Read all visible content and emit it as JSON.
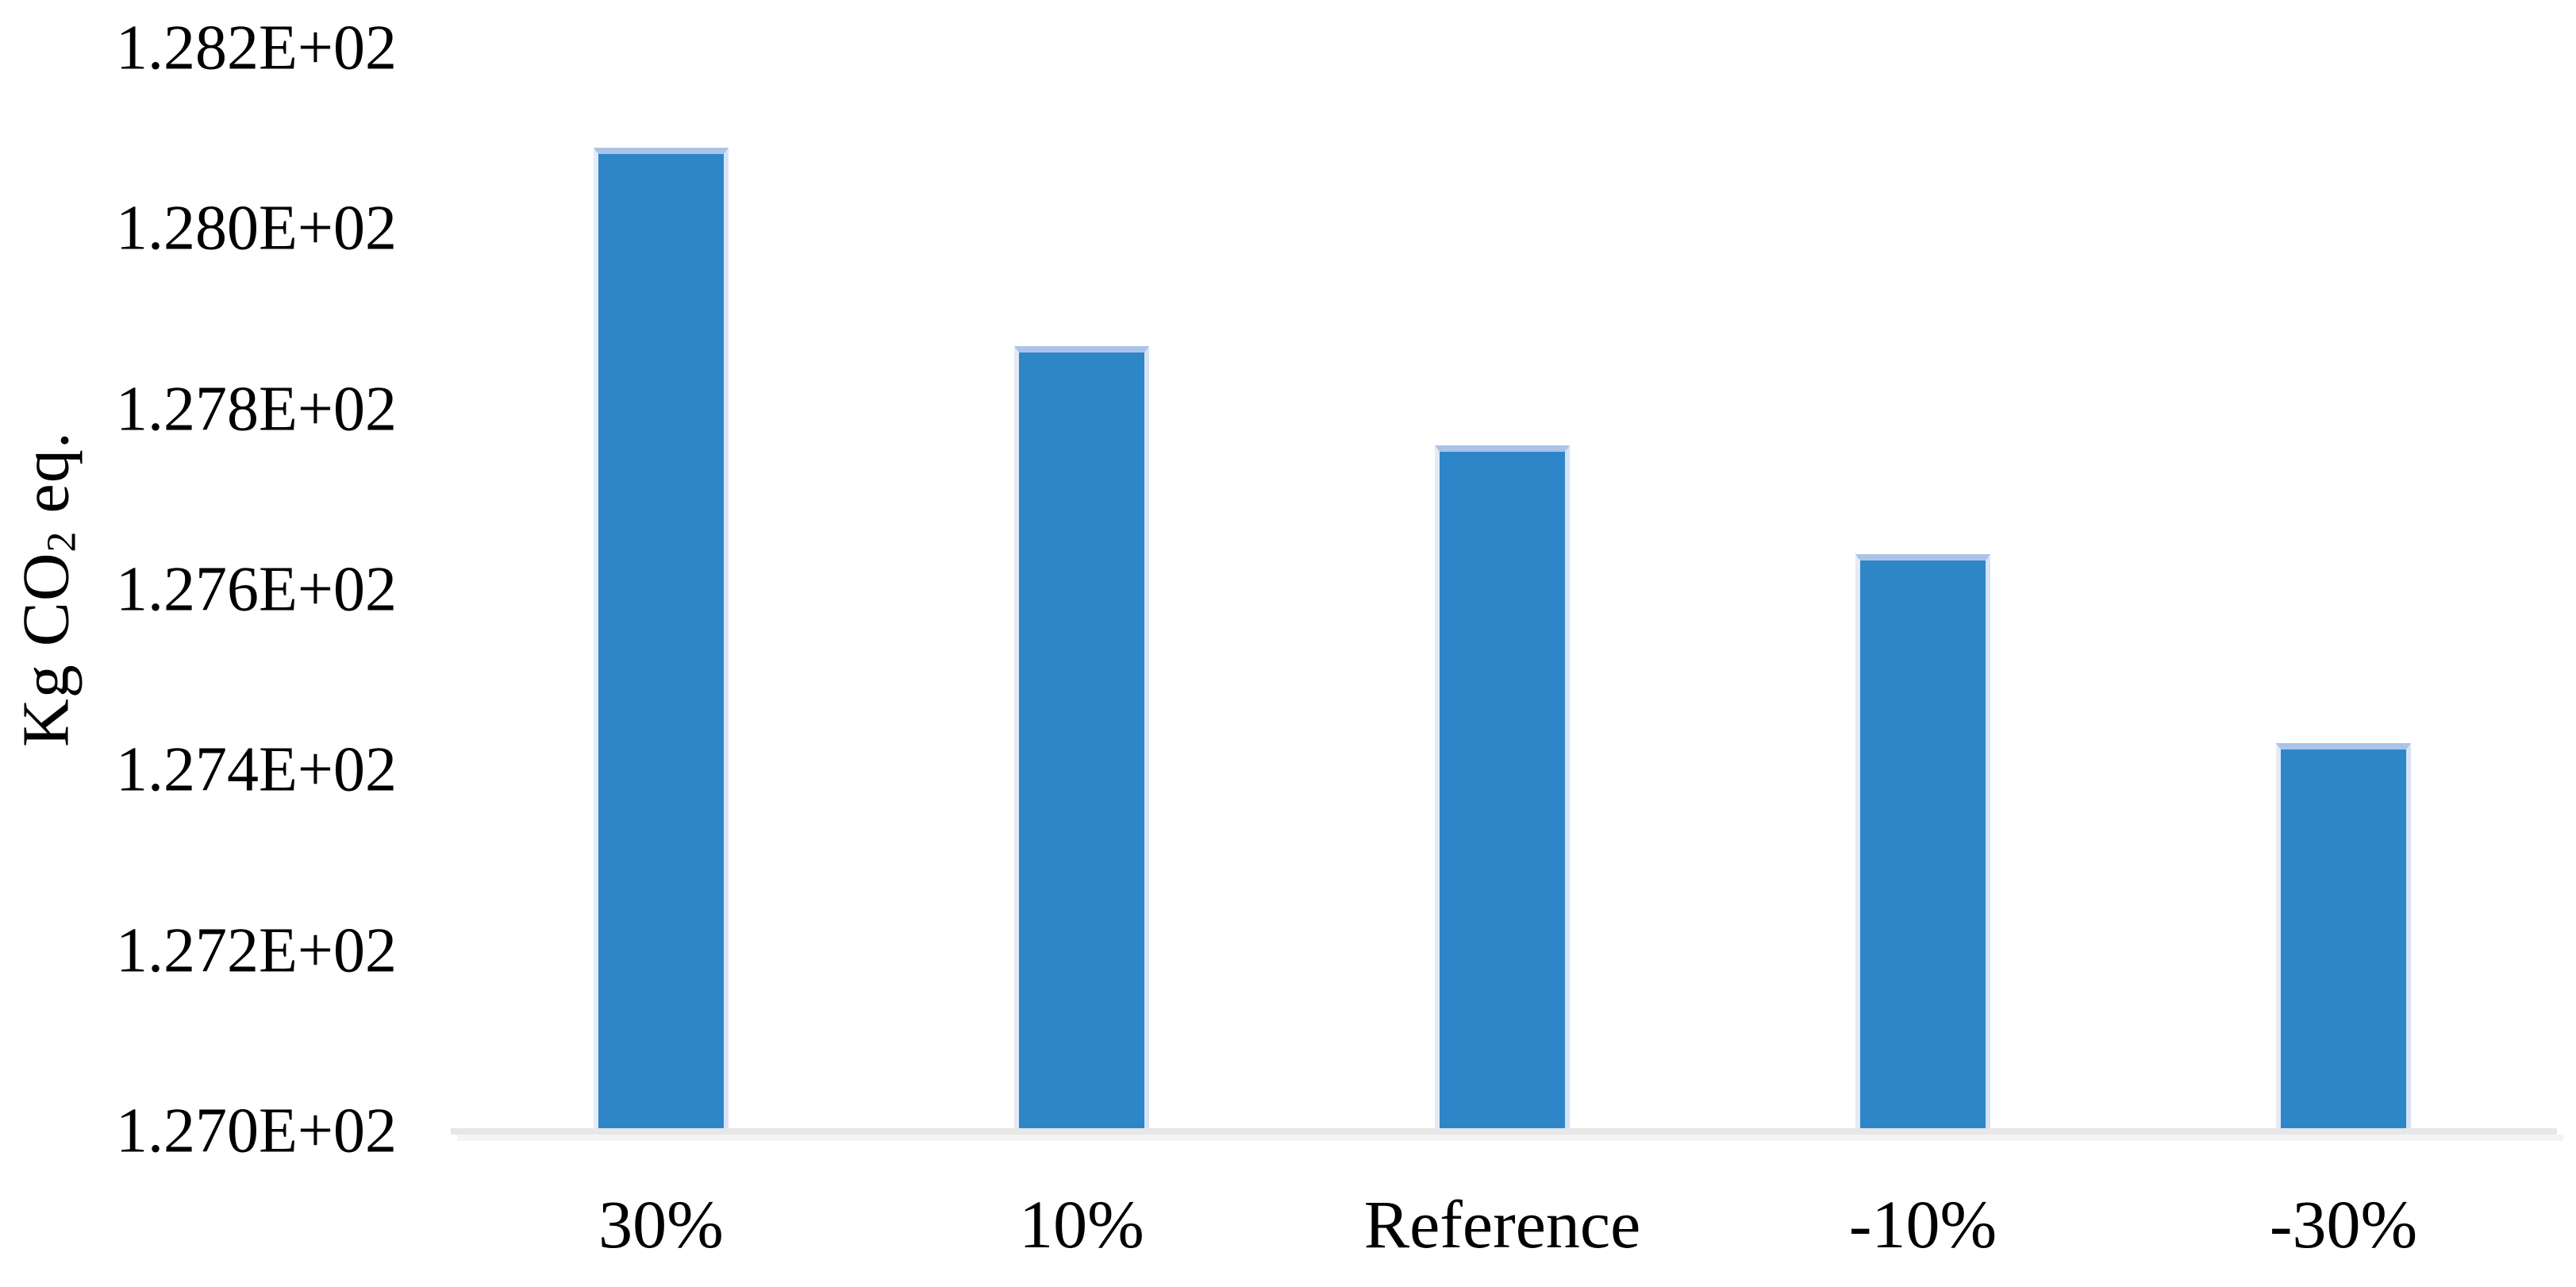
{
  "chart_data": {
    "type": "bar",
    "title": "",
    "xlabel": "",
    "ylabel": "Kg CO2 eq.",
    "ylabel_parts": {
      "prefix": "Kg CO",
      "subscript": "2",
      "suffix": " eq."
    },
    "categories": [
      "30%",
      "10%",
      "Reference",
      "-10%",
      "-30%"
    ],
    "values": [
      128.09,
      127.87,
      127.76,
      127.64,
      127.43
    ],
    "y_ticks": [
      "1.282E+02",
      "1.280E+02",
      "1.278E+02",
      "1.276E+02",
      "1.274E+02",
      "1.272E+02",
      "1.270E+02"
    ],
    "ylim": [
      127.0,
      128.2
    ],
    "grid": false,
    "legend": "none",
    "colors": {
      "bar_fill": "#2E86C8",
      "bar_edge_top": "#A9C4E7",
      "bar_edge_side": "#DDE7F5",
      "axis_line": "#E7E7E7",
      "axis_line_shadow": "#F4F4F4",
      "text": "#000000",
      "background": "#FFFFFF"
    }
  }
}
